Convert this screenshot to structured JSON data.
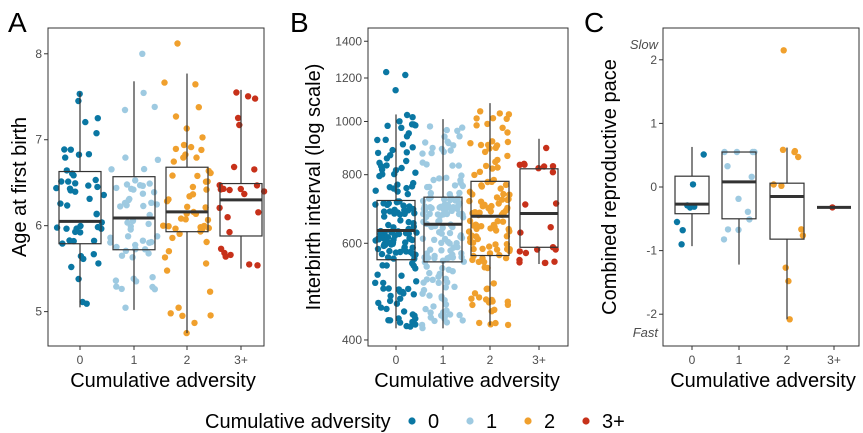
{
  "colors": {
    "0": "#0a77a3",
    "1": "#9ecae1",
    "2": "#f0a02d",
    "3+": "#c7311a"
  },
  "legend": {
    "title": "Cumulative adversity",
    "items": [
      {
        "label": "0",
        "key": "0"
      },
      {
        "label": "1",
        "key": "1"
      },
      {
        "label": "2",
        "key": "2"
      },
      {
        "label": "3+",
        "key": "3+"
      }
    ]
  },
  "chart_data": [
    {
      "panel": "A",
      "type": "box-jitter",
      "xlabel": "Cumulative adversity",
      "ylabel": "Age at first birth",
      "categories": [
        "0",
        "1",
        "2",
        "3+"
      ],
      "yticks": [
        5,
        6,
        7,
        8
      ],
      "ylim": [
        4.6,
        8.3
      ],
      "yscale": "linear",
      "boxes": [
        {
          "q1": 5.79,
          "median": 6.05,
          "q3": 6.63,
          "lo": 5.05,
          "hi": 7.55,
          "n": 50
        },
        {
          "q1": 5.72,
          "median": 6.09,
          "q3": 6.57,
          "lo": 5.02,
          "hi": 7.68,
          "n": 55
        },
        {
          "q1": 5.93,
          "median": 6.16,
          "q3": 6.68,
          "lo": 4.75,
          "hi": 7.77,
          "n": 55
        },
        {
          "q1": 5.88,
          "median": 6.3,
          "q3": 6.49,
          "lo": 5.5,
          "hi": 7.58,
          "n": 25
        }
      ],
      "extremes": [
        {
          "cat": "1",
          "value": 8.0
        },
        {
          "cat": "2",
          "value": 8.12
        },
        {
          "cat": "2",
          "value": 4.75
        }
      ]
    },
    {
      "panel": "B",
      "type": "box-jitter",
      "xlabel": "Cumulative adversity",
      "ylabel": "Interbirth interval (log scale)",
      "categories": [
        "0",
        "1",
        "2",
        "3+"
      ],
      "yticks": [
        400,
        600,
        800,
        1000,
        1200,
        1400
      ],
      "ylim": [
        390,
        1480
      ],
      "yscale": "log",
      "boxes": [
        {
          "q1": 560,
          "median": 633,
          "q3": 718,
          "lo": 420,
          "hi": 1030,
          "n": 150
        },
        {
          "q1": 555,
          "median": 650,
          "q3": 728,
          "lo": 420,
          "hi": 1010,
          "n": 150
        },
        {
          "q1": 570,
          "median": 672,
          "q3": 778,
          "lo": 425,
          "hi": 1080,
          "n": 120
        },
        {
          "q1": 590,
          "median": 680,
          "q3": 820,
          "lo": 550,
          "hi": 930,
          "n": 22
        }
      ],
      "extremes": [
        {
          "cat": "0",
          "value": 1215
        },
        {
          "cat": "0",
          "value": 1230
        },
        {
          "cat": "0",
          "value": 1140
        }
      ]
    },
    {
      "panel": "C",
      "type": "box-jitter",
      "xlabel": "Cumulative adversity",
      "ylabel": "Combined reproductive pace",
      "categories": [
        "0",
        "1",
        "2",
        "3+"
      ],
      "yticks": [
        -2,
        -1,
        0,
        1,
        2
      ],
      "ylim": [
        -2.5,
        2.5
      ],
      "yscale": "linear",
      "annotations": {
        "top": "Slow",
        "bottom": "Fast"
      },
      "boxes": [
        {
          "q1": -0.42,
          "median": -0.27,
          "q3": 0.17,
          "lo": -0.93,
          "hi": 0.63,
          "n": 8
        },
        {
          "q1": -0.5,
          "median": 0.08,
          "q3": 0.55,
          "lo": -1.22,
          "hi": 0.55,
          "n": 12
        },
        {
          "q1": -0.82,
          "median": -0.15,
          "q3": 0.06,
          "lo": -2.08,
          "hi": 0.62,
          "n": 10
        },
        {
          "q1": -0.32,
          "median": -0.32,
          "q3": -0.32,
          "lo": -0.32,
          "hi": -0.32,
          "n": 1
        }
      ],
      "extremes": [
        {
          "cat": "2",
          "value": 2.15
        },
        {
          "cat": "2",
          "value": -2.08
        }
      ]
    }
  ]
}
